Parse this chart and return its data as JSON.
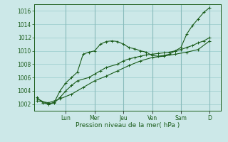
{
  "xlabel": "Pression niveau de la mer( hPa )",
  "bg_color": "#cce8e8",
  "grid_color": "#99cccc",
  "line_color": "#1a5c1a",
  "ylim": [
    1001.0,
    1017.0
  ],
  "yticks": [
    1002,
    1004,
    1006,
    1008,
    1010,
    1012,
    1014,
    1016
  ],
  "day_labels": [
    "Lun",
    "Mer",
    "Jeu",
    "Ven",
    "Sam",
    "D"
  ],
  "day_positions": [
    2.0,
    4.0,
    6.0,
    8.0,
    10.0,
    12.0
  ],
  "xlim": [
    -0.2,
    12.8
  ],
  "series1_x": [
    0.0,
    0.4,
    0.8,
    1.2,
    1.6,
    2.0,
    2.4,
    2.8,
    3.2,
    3.6,
    4.0,
    4.4,
    4.8,
    5.2,
    5.6,
    6.0,
    6.4,
    6.8,
    7.2,
    7.6,
    8.0,
    8.4,
    8.8,
    9.2,
    9.6,
    10.0,
    10.4,
    10.8,
    11.2,
    11.6,
    12.0
  ],
  "series1_y": [
    1003.0,
    1002.2,
    1002.0,
    1002.3,
    1004.0,
    1005.2,
    1006.0,
    1006.8,
    1009.5,
    1009.8,
    1010.0,
    1011.0,
    1011.4,
    1011.5,
    1011.4,
    1011.0,
    1010.5,
    1010.3,
    1010.0,
    1009.8,
    1009.3,
    1009.2,
    1009.3,
    1009.5,
    1010.0,
    1010.5,
    1012.5,
    1013.8,
    1014.8,
    1015.8,
    1016.5
  ],
  "series2_x": [
    0.0,
    0.8,
    1.2,
    1.6,
    2.0,
    2.4,
    2.8,
    3.6,
    4.0,
    4.4,
    4.8,
    5.6,
    6.0,
    6.4,
    6.8,
    7.2,
    7.6,
    8.0,
    8.4,
    8.8,
    9.2,
    9.6,
    10.0,
    10.4,
    10.8,
    11.2,
    11.6,
    12.0
  ],
  "series2_y": [
    1002.8,
    1002.0,
    1002.2,
    1003.0,
    1004.0,
    1004.8,
    1005.5,
    1006.0,
    1006.5,
    1007.0,
    1007.5,
    1008.0,
    1008.5,
    1008.8,
    1009.0,
    1009.2,
    1009.4,
    1009.5,
    1009.6,
    1009.7,
    1009.8,
    1010.0,
    1010.2,
    1010.5,
    1010.8,
    1011.2,
    1011.5,
    1012.0
  ],
  "series3_x": [
    0.0,
    0.8,
    1.6,
    2.4,
    3.2,
    4.0,
    4.8,
    5.6,
    6.4,
    7.2,
    8.0,
    8.8,
    9.6,
    10.4,
    11.2,
    12.0
  ],
  "series3_y": [
    1002.5,
    1002.2,
    1002.8,
    1003.5,
    1004.5,
    1005.5,
    1006.2,
    1007.0,
    1007.8,
    1008.5,
    1009.0,
    1009.2,
    1009.5,
    1009.8,
    1010.2,
    1011.5
  ],
  "ytick_fontsize": 5.5,
  "xtick_fontsize": 5.5,
  "xlabel_fontsize": 6.5
}
